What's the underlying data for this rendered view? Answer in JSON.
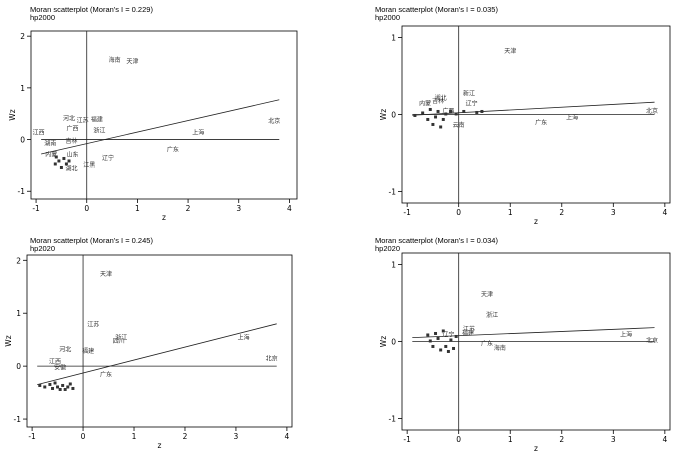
{
  "chart_data": [
    {
      "type": "scatter",
      "title": "Moran scatterplot (Moran's I = 0.229)",
      "subtitle": "hp2000",
      "xlabel": "z",
      "ylabel": "Wz",
      "xlim": [
        -1.1,
        4.15
      ],
      "ylim": [
        -1.15,
        2.1
      ],
      "xticks": [
        -1,
        0,
        1,
        2,
        3,
        4
      ],
      "yticks": [
        -1,
        0,
        1,
        2
      ],
      "fit_line": {
        "x": [
          -0.9,
          3.8
        ],
        "y": [
          -0.28,
          0.77
        ]
      },
      "points": [
        {
          "label": "海南",
          "x": 0.55,
          "y": 1.55
        },
        {
          "label": "天津",
          "x": 0.9,
          "y": 1.52
        },
        {
          "label": "河北",
          "x": -0.35,
          "y": 0.42
        },
        {
          "label": "江苏",
          "x": -0.08,
          "y": 0.38
        },
        {
          "label": "福建",
          "x": 0.2,
          "y": 0.4
        },
        {
          "label": "广西",
          "x": -0.28,
          "y": 0.22
        },
        {
          "label": "浙江",
          "x": 0.25,
          "y": 0.18
        },
        {
          "label": "江西",
          "x": -0.95,
          "y": 0.15
        },
        {
          "label": "吉林",
          "x": -0.3,
          "y": -0.02
        },
        {
          "label": "湖南",
          "x": -0.72,
          "y": -0.07
        },
        {
          "label": "山东",
          "x": -0.28,
          "y": -0.28
        },
        {
          "label": "内蒙",
          "x": -0.7,
          "y": -0.28
        },
        {
          "label": "湖北",
          "x": -0.3,
          "y": -0.55
        },
        {
          "label": "江黑",
          "x": 0.05,
          "y": -0.48
        },
        {
          "label": "辽宁",
          "x": 0.42,
          "y": -0.35
        },
        {
          "label": "上海",
          "x": 2.2,
          "y": 0.15
        },
        {
          "label": "广东",
          "x": 1.7,
          "y": -0.18
        },
        {
          "label": "北京",
          "x": 3.7,
          "y": 0.37
        },
        {
          "label": "",
          "x": -0.55,
          "y": -0.4
        },
        {
          "label": "",
          "x": -0.62,
          "y": -0.45
        },
        {
          "label": "",
          "x": -0.45,
          "y": -0.35
        },
        {
          "label": "",
          "x": -0.5,
          "y": -0.52
        },
        {
          "label": "",
          "x": -0.4,
          "y": -0.45
        },
        {
          "label": "",
          "x": -0.6,
          "y": -0.32
        },
        {
          "label": "",
          "x": -0.35,
          "y": -0.4
        }
      ]
    },
    {
      "type": "scatter",
      "title": "Moran scatterplot (Moran's I = 0.035)",
      "subtitle": "hp2000",
      "xlabel": "z",
      "ylabel": "Wz",
      "xlim": [
        -1.1,
        4.1
      ],
      "ylim": [
        -1.15,
        1.15
      ],
      "xticks": [
        -1,
        0,
        1,
        2,
        3,
        4
      ],
      "yticks": [
        -1,
        0,
        1
      ],
      "fit_line": {
        "x": [
          -0.9,
          3.8
        ],
        "y": [
          -0.01,
          0.16
        ]
      },
      "points": [
        {
          "label": "天津",
          "x": 1.0,
          "y": 0.83
        },
        {
          "label": "新江",
          "x": 0.2,
          "y": 0.28
        },
        {
          "label": "辽宁",
          "x": 0.25,
          "y": 0.15
        },
        {
          "label": "广西",
          "x": -0.2,
          "y": 0.05
        },
        {
          "label": "云南",
          "x": 0.0,
          "y": -0.13
        },
        {
          "label": "广东",
          "x": 1.6,
          "y": -0.1
        },
        {
          "label": "上海",
          "x": 2.2,
          "y": -0.03
        },
        {
          "label": "北京",
          "x": 3.75,
          "y": 0.05
        },
        {
          "label": "湖北",
          "x": -0.35,
          "y": 0.22
        },
        {
          "label": "内蒙",
          "x": -0.65,
          "y": 0.15
        },
        {
          "label": "吉林",
          "x": -0.4,
          "y": 0.18
        },
        {
          "label": "",
          "x": -0.85,
          "y": 0.0
        },
        {
          "label": "",
          "x": -0.7,
          "y": 0.03
        },
        {
          "label": "",
          "x": -0.6,
          "y": -0.05
        },
        {
          "label": "",
          "x": -0.55,
          "y": 0.08
        },
        {
          "label": "",
          "x": -0.5,
          "y": -0.12
        },
        {
          "label": "",
          "x": -0.45,
          "y": -0.02
        },
        {
          "label": "",
          "x": -0.4,
          "y": 0.05
        },
        {
          "label": "",
          "x": -0.35,
          "y": -0.15
        },
        {
          "label": "",
          "x": -0.3,
          "y": -0.05
        },
        {
          "label": "",
          "x": -0.25,
          "y": 0.02
        },
        {
          "label": "",
          "x": -0.15,
          "y": 0.05
        },
        {
          "label": "",
          "x": -0.05,
          "y": 0.02
        },
        {
          "label": "",
          "x": 0.1,
          "y": 0.05
        },
        {
          "label": "",
          "x": 0.35,
          "y": 0.04
        },
        {
          "label": "",
          "x": 0.45,
          "y": 0.05
        }
      ]
    },
    {
      "type": "scatter",
      "title": "Moran scatterplot (Moran's I = 0.245)",
      "subtitle": "hp2020",
      "xlabel": "z",
      "ylabel": "Wz",
      "xlim": [
        -1.1,
        4.1
      ],
      "ylim": [
        -1.15,
        2.1
      ],
      "xticks": [
        -1,
        0,
        1,
        2,
        3,
        4
      ],
      "yticks": [
        -1,
        0,
        1,
        2
      ],
      "fit_line": {
        "x": [
          -0.9,
          3.8
        ],
        "y": [
          -0.35,
          0.8
        ]
      },
      "points": [
        {
          "label": "天津",
          "x": 0.45,
          "y": 1.75
        },
        {
          "label": "江苏",
          "x": 0.2,
          "y": 0.8
        },
        {
          "label": "浙江",
          "x": 0.75,
          "y": 0.55
        },
        {
          "label": "四川",
          "x": 0.7,
          "y": 0.48
        },
        {
          "label": "河北",
          "x": -0.35,
          "y": 0.32
        },
        {
          "label": "福建",
          "x": 0.1,
          "y": 0.3
        },
        {
          "label": "江西",
          "x": -0.55,
          "y": 0.1
        },
        {
          "label": "安徽",
          "x": -0.45,
          "y": -0.02
        },
        {
          "label": "广东",
          "x": 0.45,
          "y": -0.15
        },
        {
          "label": "上海",
          "x": 3.15,
          "y": 0.55
        },
        {
          "label": "北京",
          "x": 3.7,
          "y": 0.15
        },
        {
          "label": "",
          "x": -0.85,
          "y": -0.35
        },
        {
          "label": "",
          "x": -0.75,
          "y": -0.38
        },
        {
          "label": "",
          "x": -0.65,
          "y": -0.33
        },
        {
          "label": "",
          "x": -0.6,
          "y": -0.4
        },
        {
          "label": "",
          "x": -0.55,
          "y": -0.3
        },
        {
          "label": "",
          "x": -0.5,
          "y": -0.38
        },
        {
          "label": "",
          "x": -0.45,
          "y": -0.42
        },
        {
          "label": "",
          "x": -0.4,
          "y": -0.35
        },
        {
          "label": "",
          "x": -0.35,
          "y": -0.42
        },
        {
          "label": "",
          "x": -0.3,
          "y": -0.38
        },
        {
          "label": "",
          "x": -0.25,
          "y": -0.32
        },
        {
          "label": "",
          "x": -0.2,
          "y": -0.4
        }
      ]
    },
    {
      "type": "scatter",
      "title": "Moran scatterplot (Moran's I = 0.034)",
      "subtitle": "hp2020",
      "xlabel": "z",
      "ylabel": "Wz",
      "xlim": [
        -1.1,
        4.1
      ],
      "ylim": [
        -1.15,
        1.15
      ],
      "xticks": [
        -1,
        0,
        1,
        2,
        3,
        4
      ],
      "yticks": [
        -1,
        0,
        1
      ],
      "fit_line": {
        "x": [
          -0.9,
          3.8
        ],
        "y": [
          0.05,
          0.18
        ]
      },
      "points": [
        {
          "label": "天津",
          "x": 0.55,
          "y": 0.62
        },
        {
          "label": "浙江",
          "x": 0.65,
          "y": 0.35
        },
        {
          "label": "江苏",
          "x": 0.2,
          "y": 0.17
        },
        {
          "label": "福建",
          "x": 0.18,
          "y": 0.12
        },
        {
          "label": "辽宁",
          "x": -0.2,
          "y": 0.1
        },
        {
          "label": "广东",
          "x": 0.55,
          "y": -0.02
        },
        {
          "label": "海南",
          "x": 0.8,
          "y": -0.08
        },
        {
          "label": "上海",
          "x": 3.25,
          "y": 0.1
        },
        {
          "label": "北京",
          "x": 3.75,
          "y": 0.02
        },
        {
          "label": "",
          "x": -0.6,
          "y": 0.1
        },
        {
          "label": "",
          "x": -0.55,
          "y": 0.02
        },
        {
          "label": "",
          "x": -0.5,
          "y": -0.05
        },
        {
          "label": "",
          "x": -0.45,
          "y": 0.12
        },
        {
          "label": "",
          "x": -0.4,
          "y": 0.05
        },
        {
          "label": "",
          "x": -0.35,
          "y": -0.1
        },
        {
          "label": "",
          "x": -0.3,
          "y": 0.15
        },
        {
          "label": "",
          "x": -0.25,
          "y": -0.05
        },
        {
          "label": "",
          "x": -0.2,
          "y": -0.12
        },
        {
          "label": "",
          "x": -0.15,
          "y": 0.03
        },
        {
          "label": "",
          "x": -0.1,
          "y": -0.08
        },
        {
          "label": "",
          "x": -0.05,
          "y": 0.08
        }
      ]
    }
  ]
}
